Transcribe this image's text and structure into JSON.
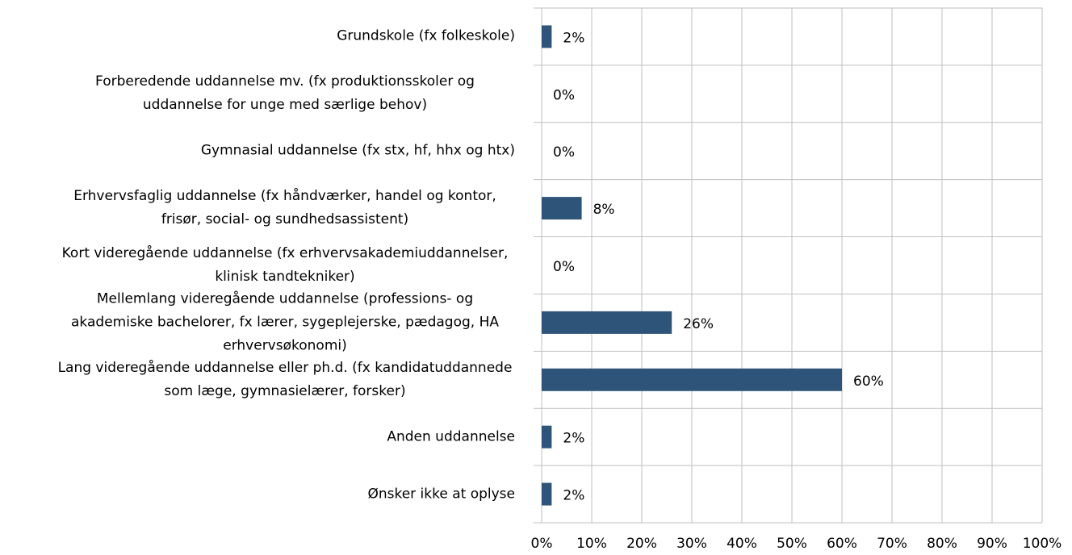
{
  "chart_data": {
    "type": "bar",
    "orientation": "horizontal",
    "categories": [
      "Grundskole (fx folkeskole)",
      "Forberedende uddannelse mv. (fx produktionsskoler og uddannelse for unge med særlige behov)",
      "Gymnasial uddannelse (fx stx, hf, hhx og htx)",
      "Erhvervsfaglig uddannelse (fx håndværker, handel og kontor, frisør, social- og sundhedsassistent)",
      "Kort videregående uddannelse (fx erhvervsakademiuddannelser, klinisk tandtekniker)",
      "Mellemlang videregående uddannelse (professions- og akademiske bachelorer, fx lærer, sygeplejerske, pædagog, HA erhvervsøkonomi)",
      "Lang videregående uddannelse eller ph.d. (fx kandidatuddannede som læge, gymnasielærer, forsker)",
      "Anden uddannelse",
      "Ønsker ikke at oplyse"
    ],
    "values": [
      2,
      0,
      0,
      8,
      0,
      26,
      60,
      2,
      2
    ],
    "value_labels": [
      "2%",
      "0%",
      "0%",
      "8%",
      "0%",
      "26%",
      "60%",
      "2%",
      "2%"
    ],
    "color": "#2f5479",
    "xlim": [
      0,
      100
    ],
    "xticks": [
      {
        "value": 0,
        "label": "0%"
      },
      {
        "value": 10,
        "label": "10%"
      },
      {
        "value": 20,
        "label": "20%"
      },
      {
        "value": 30,
        "label": "30%"
      },
      {
        "value": 40,
        "label": "40%"
      },
      {
        "value": 50,
        "label": "50%"
      },
      {
        "value": 60,
        "label": "60%"
      },
      {
        "value": 70,
        "label": "70%"
      },
      {
        "value": 80,
        "label": "80%"
      },
      {
        "value": 90,
        "label": "90%"
      },
      {
        "value": 100,
        "label": "100%"
      }
    ],
    "grid": true
  }
}
